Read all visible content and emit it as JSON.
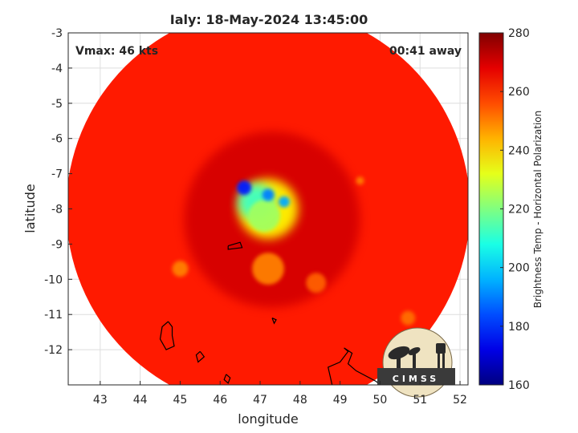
{
  "chart_data": {
    "type": "heatmap",
    "title": "Ialy: 18-May-2024 13:45:00",
    "xlabel": "longitude",
    "ylabel": "latitude",
    "xlim": [
      42.2,
      52.2
    ],
    "ylim": [
      -13,
      -3
    ],
    "x_ticks": [
      43,
      44,
      45,
      46,
      47,
      48,
      49,
      50,
      51,
      52
    ],
    "y_ticks": [
      -3,
      -4,
      -5,
      -6,
      -7,
      -8,
      -9,
      -10,
      -11,
      -12
    ],
    "grid": true,
    "annotations": {
      "vmax": "Vmax: 46 kts",
      "away": "00:41 away"
    },
    "colorbar": {
      "label": "Brightness Temp - Horizontal Polarization",
      "min": 160,
      "max": 280,
      "ticks": [
        280,
        260,
        240,
        220,
        200,
        180,
        160
      ],
      "colormap": "jet"
    },
    "swath": {
      "center_lon": 47.2,
      "center_lat": -8.0,
      "radius_deg": 5.05,
      "background_value": 262
    },
    "features": [
      {
        "lon": 47.3,
        "lat": -8.3,
        "radius": 2.2,
        "value": 270
      },
      {
        "lon": 47.2,
        "lat": -8.0,
        "radius": 0.75,
        "value": 236
      },
      {
        "lon": 46.9,
        "lat": -7.8,
        "radius": 0.45,
        "value": 212
      },
      {
        "lon": 47.1,
        "lat": -8.2,
        "radius": 0.4,
        "value": 224
      },
      {
        "lon": 46.6,
        "lat": -7.4,
        "radius": 0.18,
        "value": 178
      },
      {
        "lon": 47.2,
        "lat": -7.6,
        "radius": 0.15,
        "value": 190
      },
      {
        "lon": 47.6,
        "lat": -7.8,
        "radius": 0.14,
        "value": 195
      },
      {
        "lon": 47.2,
        "lat": -9.7,
        "radius": 0.4,
        "value": 250
      },
      {
        "lon": 45.0,
        "lat": -9.7,
        "radius": 0.2,
        "value": 250
      },
      {
        "lon": 48.4,
        "lat": -10.1,
        "radius": 0.25,
        "value": 254
      },
      {
        "lon": 49.5,
        "lat": -7.2,
        "radius": 0.1,
        "value": 250
      },
      {
        "lon": 50.7,
        "lat": -11.1,
        "radius": 0.18,
        "value": 252
      }
    ],
    "coastlines": [
      [
        [
          46.2,
          -9.05
        ],
        [
          46.5,
          -8.95
        ],
        [
          46.55,
          -9.1
        ],
        [
          46.2,
          -9.15
        ],
        [
          46.2,
          -9.05
        ]
      ],
      [
        [
          44.7,
          -11.2
        ],
        [
          44.8,
          -11.35
        ],
        [
          44.8,
          -11.6
        ],
        [
          44.85,
          -11.9
        ],
        [
          44.65,
          -12.0
        ],
        [
          44.5,
          -11.7
        ],
        [
          44.55,
          -11.35
        ],
        [
          44.7,
          -11.2
        ]
      ],
      [
        [
          45.5,
          -12.05
        ],
        [
          45.6,
          -12.2
        ],
        [
          45.45,
          -12.35
        ],
        [
          45.4,
          -12.15
        ],
        [
          45.5,
          -12.05
        ]
      ],
      [
        [
          46.15,
          -12.7
        ],
        [
          46.25,
          -12.8
        ],
        [
          46.2,
          -12.95
        ],
        [
          46.1,
          -12.85
        ],
        [
          46.15,
          -12.7
        ]
      ],
      [
        [
          47.3,
          -11.1
        ],
        [
          47.4,
          -11.15
        ],
        [
          47.35,
          -11.25
        ],
        [
          47.3,
          -11.1
        ]
      ],
      [
        [
          48.8,
          -13.0
        ],
        [
          48.7,
          -12.5
        ],
        [
          49.0,
          -12.35
        ],
        [
          49.2,
          -12.05
        ],
        [
          49.1,
          -11.95
        ],
        [
          49.3,
          -12.1
        ],
        [
          49.2,
          -12.4
        ],
        [
          49.4,
          -12.6
        ],
        [
          49.9,
          -12.9
        ],
        [
          50.0,
          -13.0
        ]
      ]
    ],
    "logo": {
      "text": "CIMSS"
    }
  }
}
